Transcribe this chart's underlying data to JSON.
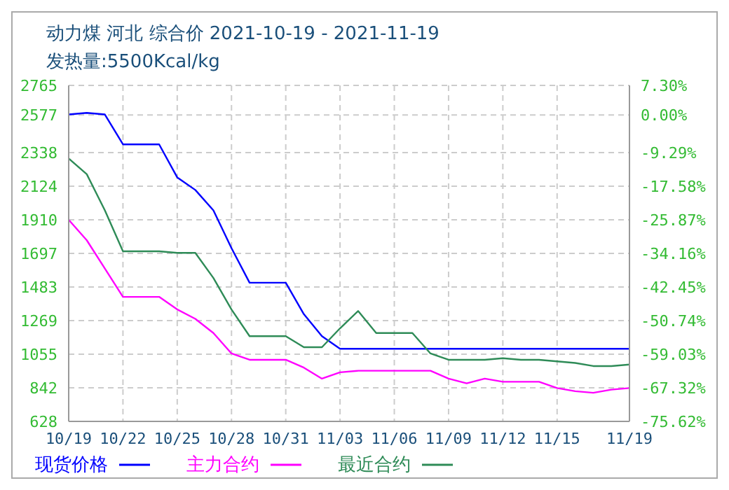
{
  "chart_data": {
    "type": "line",
    "title": "动力煤 河北 综合价 2021-10-19 - 2021-11-19",
    "subtitle": "发热量:5500Kcal/kg",
    "x": [
      "2021-10-19",
      "2021-10-20",
      "2021-10-21",
      "2021-10-22",
      "2021-10-23",
      "2021-10-24",
      "2021-10-25",
      "2021-10-26",
      "2021-10-27",
      "2021-10-28",
      "2021-10-29",
      "2021-10-30",
      "2021-10-31",
      "2021-11-01",
      "2021-11-02",
      "2021-11-03",
      "2021-11-04",
      "2021-11-05",
      "2021-11-06",
      "2021-11-07",
      "2021-11-08",
      "2021-11-09",
      "2021-11-10",
      "2021-11-11",
      "2021-11-12",
      "2021-11-13",
      "2021-11-14",
      "2021-11-15",
      "2021-11-16",
      "2021-11-17",
      "2021-11-18",
      "2021-11-19"
    ],
    "series": [
      {
        "name": "现货价格",
        "color": "#0000ff",
        "values": [
          2580,
          2590,
          2580,
          2390,
          2390,
          2390,
          2180,
          2100,
          1970,
          1730,
          1510,
          1510,
          1510,
          1310,
          1170,
          1090,
          1090,
          1090,
          1090,
          1090,
          1090,
          1090,
          1090,
          1090,
          1090,
          1090,
          1090,
          1090,
          1090,
          1090,
          1090,
          1090
        ]
      },
      {
        "name": "主力合约",
        "color": "#ff00ff",
        "values": [
          1910,
          1780,
          1600,
          1420,
          1420,
          1420,
          1340,
          1280,
          1190,
          1060,
          1020,
          1020,
          1020,
          970,
          900,
          940,
          950,
          950,
          950,
          950,
          950,
          900,
          870,
          900,
          880,
          880,
          880,
          840,
          820,
          810,
          830,
          840
        ]
      },
      {
        "name": "最近合约",
        "color": "#2e8b57",
        "values": [
          2300,
          2200,
          1970,
          1710,
          1710,
          1710,
          1700,
          1700,
          1540,
          1340,
          1170,
          1170,
          1170,
          1100,
          1100,
          1220,
          1330,
          1190,
          1190,
          1190,
          1060,
          1020,
          1020,
          1020,
          1030,
          1020,
          1020,
          1010,
          1000,
          980,
          980,
          990
        ]
      }
    ],
    "xlim": [
      "2021-10-19",
      "2021-11-19"
    ],
    "xticks": [
      {
        "value": "2021-10-19",
        "label": "10/19"
      },
      {
        "value": "2021-10-22",
        "label": "10/22"
      },
      {
        "value": "2021-10-25",
        "label": "10/25"
      },
      {
        "value": "2021-10-28",
        "label": "10/28"
      },
      {
        "value": "2021-10-31",
        "label": "10/31"
      },
      {
        "value": "2021-11-03",
        "label": "11/03"
      },
      {
        "value": "2021-11-06",
        "label": "11/06"
      },
      {
        "value": "2021-11-09",
        "label": "11/09"
      },
      {
        "value": "2021-11-12",
        "label": "11/12"
      },
      {
        "value": "2021-11-15",
        "label": "11/15"
      },
      {
        "value": "2021-11-19",
        "label": "11/19"
      }
    ],
    "ylim": [
      628,
      2765
    ],
    "yticks": [
      628,
      842,
      1055,
      1269,
      1483,
      1697,
      1910,
      2124,
      2338,
      2577,
      2765
    ],
    "y2lim": [
      -75.62,
      7.3
    ],
    "y2ticks": [
      {
        "value": -75.62,
        "label": "-75.62%"
      },
      {
        "value": -67.32,
        "label": "-67.32%"
      },
      {
        "value": -59.03,
        "label": "-59.03%"
      },
      {
        "value": -50.74,
        "label": "-50.74%"
      },
      {
        "value": -42.45,
        "label": "-42.45%"
      },
      {
        "value": -34.16,
        "label": "-34.16%"
      },
      {
        "value": -25.87,
        "label": "-25.87%"
      },
      {
        "value": -17.58,
        "label": "-17.58%"
      },
      {
        "value": -9.29,
        "label": "-9.29%"
      },
      {
        "value": 0,
        "label": "0.00%"
      },
      {
        "value": 7.3,
        "label": "7.30%"
      }
    ],
    "grid": true,
    "legend": "bottom",
    "marker": "none",
    "line_style": "solid"
  }
}
